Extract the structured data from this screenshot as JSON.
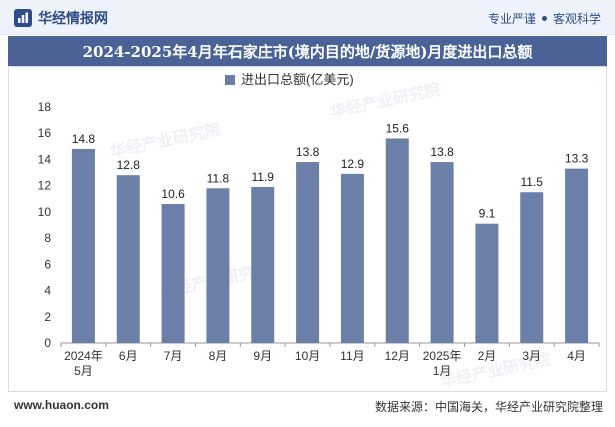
{
  "header": {
    "brand": "华经情报网",
    "tagline_left": "专业严谨",
    "tagline_right": "客观科学"
  },
  "watermark": "华经产业研究院",
  "chart_data": {
    "type": "bar",
    "title": "2024-2025年4月年石家庄市(境内目的地/货源地)月度进出口总额",
    "legend": "进出口总额(亿美元)",
    "categories": [
      "2024年\n5月",
      "6月",
      "7月",
      "8月",
      "9月",
      "10月",
      "11月",
      "12月",
      "2025年\n1月",
      "2月",
      "3月",
      "4月"
    ],
    "values": [
      14.8,
      12.8,
      10.6,
      11.8,
      11.9,
      13.8,
      12.9,
      15.6,
      13.8,
      9.1,
      11.5,
      13.3
    ],
    "yticks": [
      0,
      2,
      4,
      6,
      8,
      10,
      12,
      14,
      16,
      18
    ],
    "ylim": [
      0,
      18
    ],
    "color": "#6b7fa8"
  },
  "footer": {
    "site": "www.huaon.com",
    "source": "数据来源：中国海关，华经产业研究院整理"
  }
}
